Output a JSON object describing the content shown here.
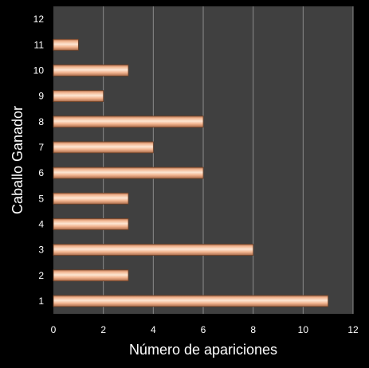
{
  "chart_data": {
    "type": "bar",
    "orientation": "horizontal",
    "title": "",
    "xlabel": "Número de apariciones",
    "ylabel": "Caballo Ganador",
    "xlim": [
      0,
      12
    ],
    "x_ticks": [
      "0",
      "2",
      "4",
      "6",
      "8",
      "10",
      "12"
    ],
    "categories": [
      "1",
      "2",
      "3",
      "4",
      "5",
      "6",
      "7",
      "8",
      "9",
      "10",
      "11",
      "12"
    ],
    "values": [
      11,
      3,
      8,
      3,
      3,
      6,
      4,
      6,
      2,
      3,
      1,
      null
    ],
    "grid": "vertical",
    "legend": "none",
    "colors": {
      "background": "#000000",
      "plot_background": "#404040",
      "gridline": "#8c8c8c",
      "bar_light": "#fde6d3",
      "bar_mid": "#f2b48f",
      "bar_dark": "#a86a49",
      "text": "#ffffff"
    }
  }
}
